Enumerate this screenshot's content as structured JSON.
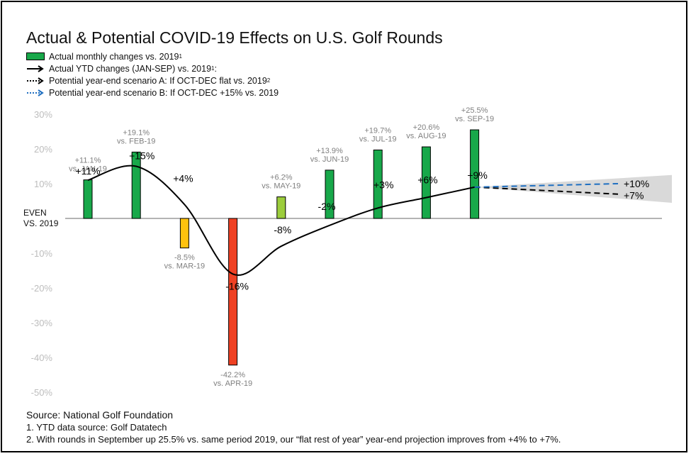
{
  "chart_data": {
    "type": "bar",
    "title": "Actual & Potential COVID-19 Effects on U.S. Golf Rounds",
    "legend": [
      {
        "label": "Actual monthly changes vs. 2019",
        "sup": "1",
        "style": "green-bar"
      },
      {
        "label": "Actual YTD changes (JAN-SEP) vs. 2019",
        "sup": "1",
        "suffix": ":",
        "style": "black-solid-arrow"
      },
      {
        "label": "Potential year-end scenario A: If OCT-DEC flat vs. 2019",
        "sup": "2",
        "style": "black-dotted-arrow"
      },
      {
        "label": "Potential year-end scenario B: If OCT-DEC +15% vs. 2019",
        "sup": "",
        "style": "blue-dotted-arrow"
      }
    ],
    "legend_placement": "top-left",
    "y_ticks": [
      "30%",
      "20%",
      "10%",
      "",
      "-10%",
      "-20%",
      "-30%",
      "-40%",
      "-50%"
    ],
    "y_tick_values": [
      30,
      20,
      10,
      0,
      -10,
      -20,
      -30,
      -40,
      -50
    ],
    "ylim": [
      -50,
      30
    ],
    "zero_label": [
      "EVEN",
      "VS. 2019"
    ],
    "categories": [
      "JAN",
      "FEB",
      "MAR",
      "APR",
      "MAY",
      "JUN",
      "JUL",
      "AUG",
      "SEP"
    ],
    "monthly": [
      {
        "value": 11.1,
        "label": "+11.1%",
        "sub": "vs. JAN-19",
        "color": "#18a84a"
      },
      {
        "value": 19.1,
        "label": "+19.1%",
        "sub": "vs. FEB-19",
        "color": "#18a84a"
      },
      {
        "value": -8.5,
        "label": "-8.5%",
        "sub": "vs. MAR-19",
        "color": "#ffc20e"
      },
      {
        "value": -42.2,
        "label": "-42.2%",
        "sub": "vs. APR-19",
        "color": "#ef4123"
      },
      {
        "value": 6.2,
        "label": "+6.2%",
        "sub": "vs. MAY-19",
        "color": "#9ccd3c"
      },
      {
        "value": 13.9,
        "label": "+13.9%",
        "sub": "vs. JUN-19",
        "color": "#18a84a"
      },
      {
        "value": 19.7,
        "label": "+19.7%",
        "sub": "vs. JUL-19",
        "color": "#18a84a"
      },
      {
        "value": 20.6,
        "label": "+20.6%",
        "sub": "vs. AUG-19",
        "color": "#18a84a"
      },
      {
        "value": 25.5,
        "label": "+25.5%",
        "sub": "vs. SEP-19",
        "color": "#18a84a"
      }
    ],
    "ytd": {
      "values": [
        11,
        15,
        4,
        -16,
        -8,
        -2,
        3,
        6,
        9
      ],
      "labels": [
        "+11%",
        "+15%",
        "+4%",
        "-16%",
        "-8%",
        "-2%",
        "+3%",
        "+6%",
        "+9%"
      ]
    },
    "scenario_a": {
      "value": 7,
      "label": "+7%",
      "color": "#000000"
    },
    "scenario_b": {
      "value": 10,
      "label": "+10%",
      "color": "#1f6fc1"
    },
    "colors": {
      "axis": "#888888",
      "tick": "#bdbdbd",
      "band": "#d9d9d9",
      "value_label": "#7f7f7f"
    }
  },
  "footer": {
    "source": "Source: National Golf Foundation",
    "note1": "1. YTD data source: Golf Datatech",
    "note2": "2. With rounds in September up 25.5% vs. same period 2019, our “flat rest of year” year-end projection improves from +4% to +7%."
  }
}
